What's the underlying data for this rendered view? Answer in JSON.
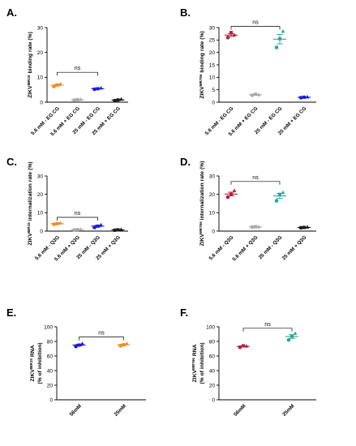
{
  "palette": {
    "orange": "#f28c1e",
    "gray": "#a9a9a9",
    "blue": "#1d1dd6",
    "black": "#1a1a1a",
    "maroon": "#b0223e",
    "teal": "#28a89a"
  },
  "chart_data": [
    {
      "panel": "A.",
      "type": "scatter",
      "ylabel_base": "ZIKV",
      "ylabel_sup": "IBR15",
      "ylabel_rest": " binding rate (%)",
      "ylim": [
        0,
        30
      ],
      "yticks": [
        0,
        10,
        20,
        30
      ],
      "categories": [
        "5.6 mM - EG CG",
        "5.6 mM + EG CG",
        "25 mM - EG CG",
        "25 mM + EG CG"
      ],
      "colors": [
        "#f28c1e",
        "#a9a9a9",
        "#1d1dd6",
        "#1a1a1a"
      ],
      "points": [
        [
          6.3,
          6.9,
          7.3
        ],
        [
          0.8,
          1.0,
          1.1
        ],
        [
          5.2,
          5.4,
          5.7
        ],
        [
          0.6,
          0.9,
          1.2
        ]
      ],
      "annotation": {
        "text": "ns",
        "from": 0,
        "to": 2,
        "y": 12
      }
    },
    {
      "panel": "B.",
      "type": "scatter",
      "ylabel_base": "ZIKV",
      "ylabel_sup": "MR766",
      "ylabel_rest": " binding rate (%)",
      "ylim": [
        0,
        30
      ],
      "yticks": [
        0,
        5,
        10,
        15,
        20,
        25,
        30
      ],
      "categories": [
        "5.6 mM - EG CG",
        "5.6 mM + EG CG",
        "25 mM - EG CG",
        "25 mM + EG CG"
      ],
      "colors": [
        "#b0223e",
        "#a9a9a9",
        "#28a89a",
        "#1d1dd6"
      ],
      "points": [
        [
          26,
          28,
          27
        ],
        [
          2.8,
          3.2,
          3.0
        ],
        [
          22,
          25.5,
          28.5
        ],
        [
          1.8,
          2.0,
          2.1
        ]
      ],
      "annotation": {
        "text": "ns",
        "from": 0,
        "to": 2,
        "y": 30.5
      }
    },
    {
      "panel": "C.",
      "type": "scatter",
      "ylabel_base": "ZIKV",
      "ylabel_sup": "IBR15",
      "ylabel_rest": " internalization rate (%)",
      "ylim": [
        0,
        30
      ],
      "yticks": [
        0,
        10,
        20,
        30
      ],
      "categories": [
        "5.6 mM - Q3G",
        "5.6 mM + Q3G",
        "25 mM - Q3G",
        "25 mM + Q3G"
      ],
      "colors": [
        "#f28c1e",
        "#a9a9a9",
        "#1d1dd6",
        "#1a1a1a"
      ],
      "points": [
        [
          3.7,
          4.1,
          4.4
        ],
        [
          0.6,
          0.8,
          0.9
        ],
        [
          2.0,
          2.7,
          3.4
        ],
        [
          0.5,
          0.7,
          0.9
        ]
      ],
      "annotation": {
        "text": "ns",
        "from": 0,
        "to": 2,
        "y": 7.5
      }
    },
    {
      "panel": "D.",
      "type": "scatter",
      "ylabel_base": "ZIKV",
      "ylabel_sup": "MR766",
      "ylabel_rest": " internalization rate (%)",
      "ylim": [
        0,
        30
      ],
      "yticks": [
        0,
        10,
        20,
        30
      ],
      "categories": [
        "5.6 mM - Q3G",
        "5.6 mM + Q3G",
        "25 mM - Q3G",
        "25 mM + Q3G"
      ],
      "colors": [
        "#b0223e",
        "#a9a9a9",
        "#28a89a",
        "#1a1a1a"
      ],
      "points": [
        [
          18.5,
          20,
          22
        ],
        [
          2.2,
          2.4,
          2.3
        ],
        [
          16.5,
          20,
          21
        ],
        [
          1.8,
          2.0,
          2.2
        ]
      ],
      "annotation": {
        "text": "ns",
        "from": 0,
        "to": 2,
        "y": 27
      }
    },
    {
      "panel": "E.",
      "type": "scatter",
      "ylabel_base": "ZIKV",
      "ylabel_sup": "IBR15",
      "ylabel_rest": " RNA",
      "ylabel_line2": "(% of inhibition)",
      "ylim": [
        0,
        100
      ],
      "yticks": [
        0,
        20,
        40,
        60,
        80,
        100
      ],
      "categories": [
        "56mM",
        "25mM"
      ],
      "colors": [
        "#1d1dd6",
        "#f28c1e"
      ],
      "points": [
        [
          73,
          75,
          77
        ],
        [
          74,
          75.5,
          77
        ]
      ],
      "annotation": {
        "text": "ns",
        "from": 0,
        "to": 1,
        "y": 86
      }
    },
    {
      "panel": "F.",
      "type": "scatter",
      "ylabel_base": "ZIKV",
      "ylabel_sup": "MR766",
      "ylabel_rest": " RNA",
      "ylabel_line2": "(% of inhibition)",
      "ylim": [
        0,
        100
      ],
      "yticks": [
        0,
        20,
        40,
        60,
        80,
        100
      ],
      "categories": [
        "56mM",
        "25mM"
      ],
      "colors": [
        "#b0223e",
        "#28a89a"
      ],
      "points": [
        [
          72,
          74,
          73.5
        ],
        [
          82,
          87,
          91
        ]
      ],
      "annotation": {
        "text": "ns",
        "from": 0,
        "to": 1,
        "y": 98
      }
    }
  ]
}
